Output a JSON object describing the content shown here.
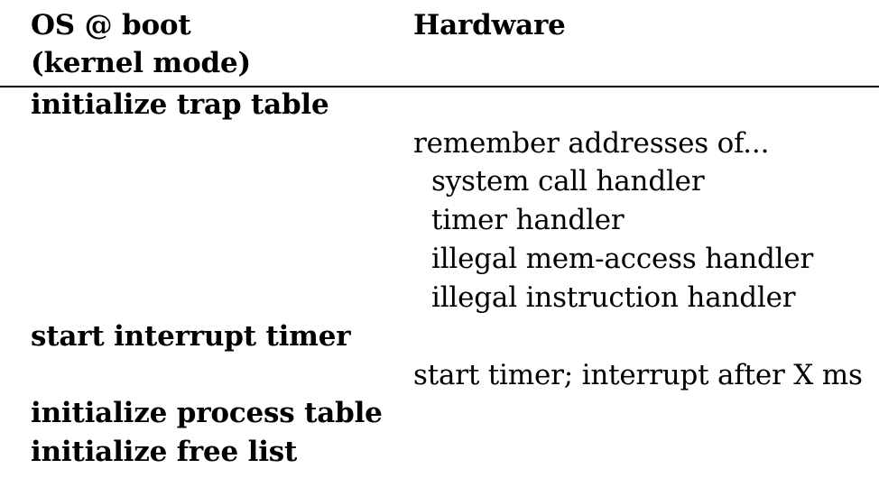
{
  "header": {
    "os_title_line1": "OS @ boot",
    "os_title_line2": "(kernel mode)",
    "hw_title": "Hardware"
  },
  "rows": {
    "init_trap_table": "initialize trap table",
    "remember_addresses": "remember addresses of...",
    "syscall_handler": "system call handler",
    "timer_handler": "timer handler",
    "illegal_mem_handler": "illegal mem-access handler",
    "illegal_instr_handler": "illegal instruction handler",
    "start_interrupt_timer": "start interrupt timer",
    "start_timer": "start timer; interrupt after X ms",
    "init_process_table": "initialize process table",
    "init_free_list": "initialize free list"
  }
}
